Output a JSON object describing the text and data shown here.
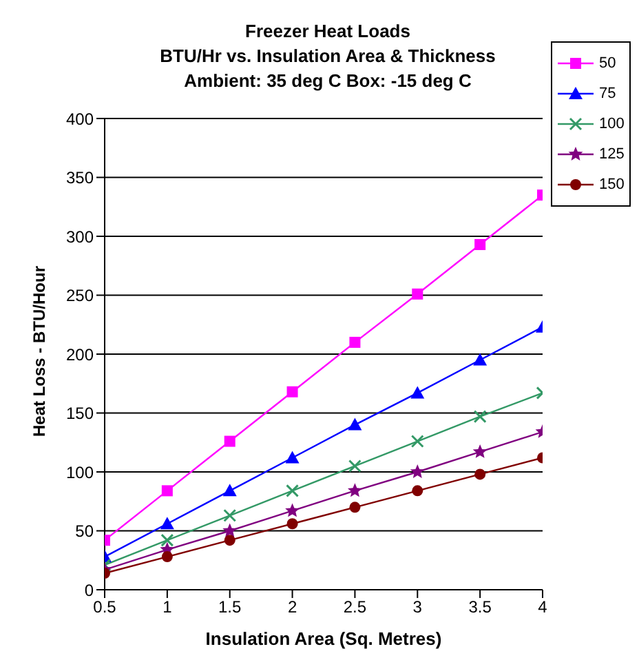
{
  "chart_data": {
    "type": "line",
    "title": "Freezer Heat Loads\nBTU/Hr vs. Insulation Area & Thickness\nAmbient: 35 deg C  Box: -15 deg C",
    "xlabel": "Insulation Area (Sq. Metres)",
    "ylabel": "Heat Loss - BTU/Hour",
    "x": [
      0.5,
      1,
      1.5,
      2,
      2.5,
      3,
      3.5,
      4
    ],
    "series": [
      {
        "name": "50",
        "color": "#ff00ff",
        "marker": "square",
        "values": [
          42,
          84,
          126,
          168,
          210,
          251,
          293,
          335
        ]
      },
      {
        "name": "75",
        "color": "#0000ff",
        "marker": "triangle",
        "values": [
          28,
          56,
          84,
          112,
          140,
          167,
          195,
          223
        ]
      },
      {
        "name": "100",
        "color": "#339966",
        "marker": "cross",
        "values": [
          21,
          42,
          63,
          84,
          105,
          126,
          147,
          167
        ]
      },
      {
        "name": "125",
        "color": "#800080",
        "marker": "star",
        "values": [
          17,
          34,
          50,
          67,
          84,
          100,
          117,
          134
        ]
      },
      {
        "name": "150",
        "color": "#800000",
        "marker": "circle",
        "values": [
          14,
          28,
          42,
          56,
          70,
          84,
          98,
          112
        ]
      }
    ],
    "xlim": [
      0.5,
      4
    ],
    "xticks": [
      0.5,
      1,
      1.5,
      2,
      2.5,
      3,
      3.5,
      4
    ],
    "ylim": [
      0,
      400
    ],
    "yticks": [
      0,
      50,
      100,
      150,
      200,
      250,
      300,
      350,
      400
    ],
    "grid": "y",
    "legend": "top right",
    "line_style": "solid"
  }
}
